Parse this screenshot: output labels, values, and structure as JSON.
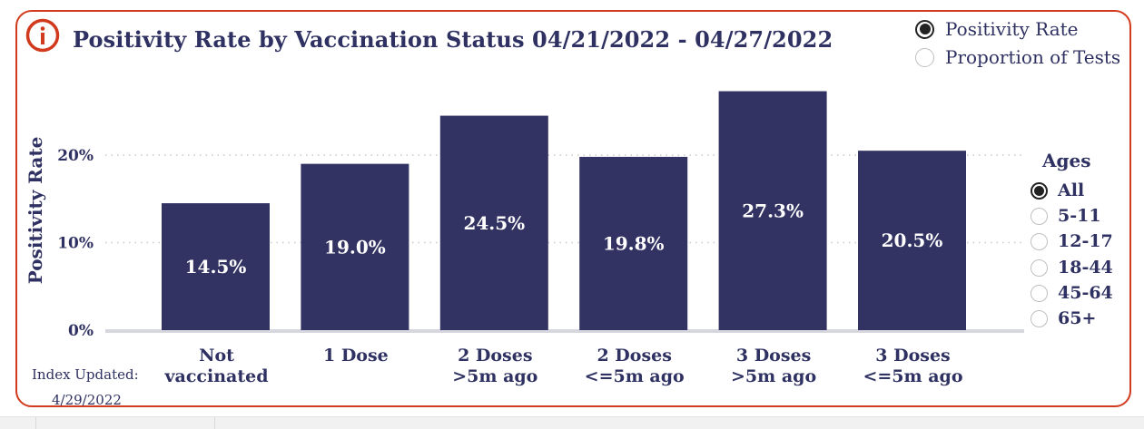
{
  "title": "Positivity Rate by Vaccination Status 04/21/2022 - 04/27/2022",
  "metric_options": [
    {
      "label": "Positivity Rate",
      "selected": true
    },
    {
      "label": "Proportion of Tests",
      "selected": false
    }
  ],
  "ages": {
    "title": "Ages",
    "options": [
      {
        "label": "All",
        "selected": true
      },
      {
        "label": "5-11",
        "selected": false
      },
      {
        "label": "12-17",
        "selected": false
      },
      {
        "label": "18-44",
        "selected": false
      },
      {
        "label": "45-64",
        "selected": false
      },
      {
        "label": "65+",
        "selected": false
      }
    ]
  },
  "index_updated": {
    "label": "Index Updated:",
    "date": "4/29/2022"
  },
  "colors": {
    "bar": "#333363",
    "accent": "#d23a1e",
    "text": "#2e3161",
    "grid": "#cccccc"
  },
  "icons": {
    "info": "info-icon"
  },
  "chart_data": {
    "type": "bar",
    "title": "Positivity Rate by Vaccination Status 04/21/2022 - 04/27/2022",
    "ylabel": "Positivity Rate",
    "xlabel": "",
    "categories": [
      [
        "Not",
        "vaccinated"
      ],
      [
        "1 Dose"
      ],
      [
        "2 Doses",
        ">5m ago"
      ],
      [
        "2 Doses",
        "<=5m ago"
      ],
      [
        "3 Doses",
        ">5m ago"
      ],
      [
        "3 Doses",
        "<=5m ago"
      ]
    ],
    "values": [
      14.5,
      19.0,
      24.5,
      19.8,
      27.3,
      20.5
    ],
    "value_labels": [
      "14.5%",
      "19.0%",
      "24.5%",
      "19.8%",
      "27.3%",
      "20.5%"
    ],
    "yticks": [
      0,
      10,
      20
    ],
    "ytick_labels": [
      "0%",
      "10%",
      "20%"
    ],
    "ylim": [
      0,
      30
    ],
    "grid": true,
    "legend": false
  }
}
